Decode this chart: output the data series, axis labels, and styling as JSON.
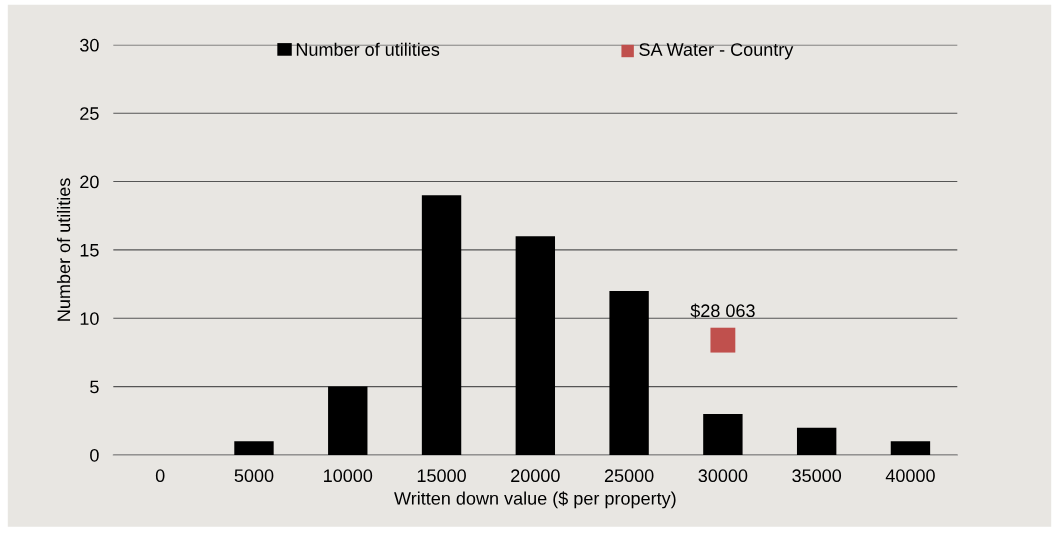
{
  "chart_data": {
    "type": "bar",
    "xlabel": "Written down value ($ per property)",
    "ylabel": "Number of utilities",
    "categories": [
      "0",
      "5000",
      "10000",
      "15000",
      "20000",
      "25000",
      "30000",
      "35000",
      "40000"
    ],
    "series": [
      {
        "name": "Number of utilities",
        "color": "#000000",
        "values": [
          0,
          1,
          5,
          19,
          16,
          12,
          3,
          2,
          1
        ]
      },
      {
        "name": "SA Water - Country",
        "type": "scatter",
        "color": "#c0504d",
        "marker": "square",
        "x": [
          "30000"
        ],
        "values": [
          8.4
        ]
      }
    ],
    "annotations": [
      {
        "text": "$28 063",
        "x": "30000",
        "y": 8.4
      }
    ],
    "ylim": [
      0,
      30
    ],
    "yticks": [
      0,
      5,
      10,
      15,
      20,
      25,
      30
    ],
    "grid": "y",
    "legend": "top"
  }
}
